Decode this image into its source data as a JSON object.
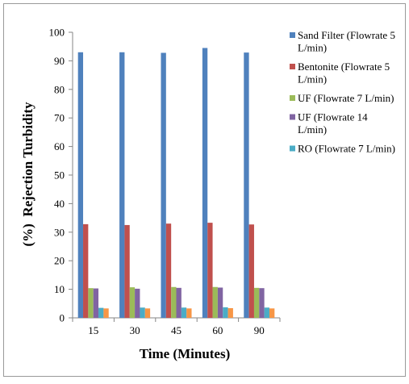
{
  "chart_data": {
    "type": "bar",
    "categories": [
      "15",
      "30",
      "45",
      "60",
      "90"
    ],
    "xlabel": "Time (Minutes)",
    "ylabel": "(%)  Rejection Turbidity",
    "ylim": [
      0,
      100
    ],
    "yticks": [
      "0",
      "10",
      "20",
      "30",
      "40",
      "50",
      "60",
      "70",
      "80",
      "90",
      "100"
    ],
    "grid": false,
    "legend_position": "right",
    "series": [
      {
        "name": "Sand Filter (Flowrate 5 L/min)",
        "color": "#4F81BD",
        "values": [
          93.0,
          93.0,
          92.8,
          94.5,
          92.9
        ]
      },
      {
        "name": "Bentonite (Flowrate 5 L/min)",
        "color": "#C0504D",
        "values": [
          32.8,
          32.5,
          33.0,
          33.3,
          32.7
        ]
      },
      {
        "name": "UF (Flowrate 7 L/min)",
        "color": "#9BBB59",
        "values": [
          10.4,
          10.7,
          10.8,
          10.8,
          10.5
        ]
      },
      {
        "name": "UF (Flowrate 14 L/min)",
        "color": "#8064A2",
        "values": [
          10.3,
          10.2,
          10.5,
          10.6,
          10.4
        ]
      },
      {
        "name": "RO (Flowrate 7 L/min)",
        "color": "#4BACC6",
        "values": [
          3.5,
          3.6,
          3.6,
          3.7,
          3.6
        ]
      },
      {
        "color": "#F79646",
        "values": [
          3.3,
          3.3,
          3.3,
          3.4,
          3.3
        ]
      }
    ],
    "legend": [
      {
        "lines": [
          "Sand Filter (Flowrate 5",
          "L/min)"
        ],
        "color": "#4F81BD"
      },
      {
        "lines": [
          "Bentonite (Flowrate 5",
          "L/min)"
        ],
        "color": "#C0504D"
      },
      {
        "lines": [
          "UF (Flowrate 7 L/min)"
        ],
        "color": "#9BBB59"
      },
      {
        "lines": [
          "UF (Flowrate 14",
          "L/min)"
        ],
        "color": "#8064A2"
      },
      {
        "lines": [
          "RO (Flowrate 7 L/min)"
        ],
        "color": "#4BACC6"
      }
    ]
  }
}
